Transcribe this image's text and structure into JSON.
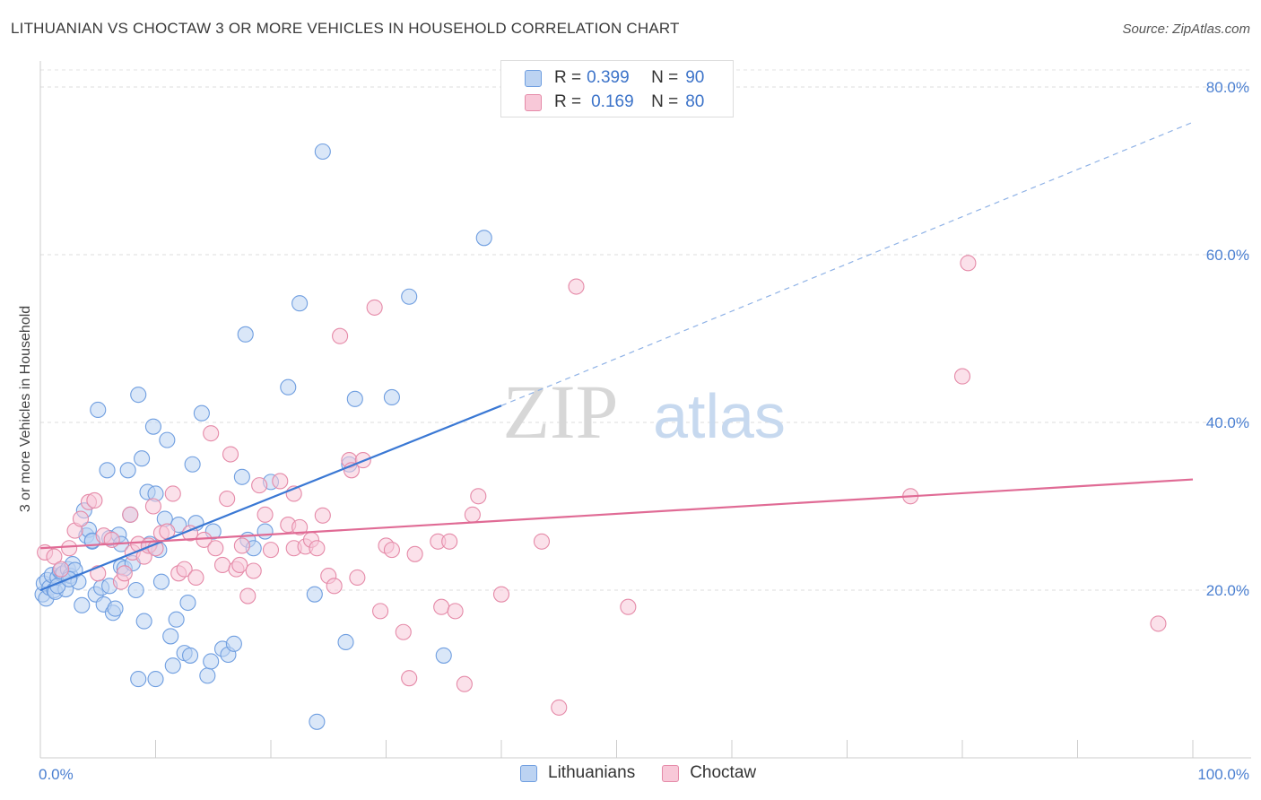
{
  "title": "LITHUANIAN VS CHOCTAW 3 OR MORE VEHICLES IN HOUSEHOLD CORRELATION CHART",
  "source": "Source: ZipAtlas.com",
  "watermark": {
    "zip": "ZIP",
    "atlas": "atlas"
  },
  "legend": {
    "rows": [
      {
        "r_label": "R =",
        "r_value": "0.399",
        "n_label": "N =",
        "n_value": "90",
        "fill": "#bcd3f2",
        "stroke": "#6f9ee0"
      },
      {
        "r_label": "R =",
        "r_value": "0.169",
        "n_label": "N =",
        "n_value": "80",
        "fill": "#f8c8d8",
        "stroke": "#e58aa8"
      }
    ]
  },
  "bottom_legend": [
    {
      "label": "Lithuanians",
      "fill": "#bcd3f2",
      "stroke": "#6f9ee0"
    },
    {
      "label": "Choctaw",
      "fill": "#f8c8d8",
      "stroke": "#e58aa8"
    }
  ],
  "chart_data": {
    "type": "scatter",
    "xlabel": "",
    "ylabel": "3 or more Vehicles in Household",
    "xlim": [
      0,
      100
    ],
    "ylim": [
      0,
      80
    ],
    "x_tick_labels": [
      "0.0%",
      "100.0%"
    ],
    "y_tick_labels": [
      "20.0%",
      "40.0%",
      "60.0%",
      "80.0%"
    ],
    "y_ticks": [
      20,
      40,
      60,
      80
    ],
    "grid": true,
    "legend_position": "top-center",
    "series": [
      {
        "name": "Lithuanians",
        "color": "#6f9ee0",
        "fill": "#bcd3f2",
        "trend": {
          "x0": 0,
          "y0": 20.0,
          "x1": 40,
          "y1": 42.0,
          "dash_to_x": 100,
          "dash_to_y": 75.8
        },
        "points": [
          [
            0.2,
            19.5
          ],
          [
            0.3,
            20.8
          ],
          [
            0.5,
            19.0
          ],
          [
            0.6,
            21.2
          ],
          [
            0.8,
            20.3
          ],
          [
            1.0,
            21.8
          ],
          [
            1.2,
            20.0
          ],
          [
            1.3,
            19.8
          ],
          [
            1.5,
            21.5
          ],
          [
            1.7,
            22.3
          ],
          [
            1.9,
            21.9
          ],
          [
            2.0,
            22.0
          ],
          [
            2.2,
            20.1
          ],
          [
            2.4,
            22.5
          ],
          [
            2.6,
            21.7
          ],
          [
            2.8,
            23.1
          ],
          [
            3.0,
            22.4
          ],
          [
            3.3,
            21.0
          ],
          [
            3.6,
            18.2
          ],
          [
            3.8,
            29.5
          ],
          [
            4.0,
            26.5
          ],
          [
            4.2,
            27.2
          ],
          [
            4.5,
            25.8
          ],
          [
            4.8,
            19.5
          ],
          [
            5.0,
            41.5
          ],
          [
            5.3,
            20.3
          ],
          [
            5.5,
            18.3
          ],
          [
            5.8,
            34.3
          ],
          [
            6.0,
            26.2
          ],
          [
            6.3,
            17.3
          ],
          [
            6.5,
            17.8
          ],
          [
            6.8,
            26.6
          ],
          [
            7.0,
            22.8
          ],
          [
            7.3,
            22.6
          ],
          [
            7.6,
            34.3
          ],
          [
            7.8,
            29.0
          ],
          [
            8.0,
            23.2
          ],
          [
            8.3,
            20.0
          ],
          [
            8.5,
            43.3
          ],
          [
            8.8,
            35.7
          ],
          [
            9.0,
            16.3
          ],
          [
            9.3,
            31.7
          ],
          [
            9.5,
            25.5
          ],
          [
            9.8,
            39.5
          ],
          [
            10.0,
            31.5
          ],
          [
            10.3,
            24.8
          ],
          [
            10.5,
            21.0
          ],
          [
            10.8,
            28.5
          ],
          [
            11.0,
            37.9
          ],
          [
            11.3,
            14.5
          ],
          [
            11.5,
            11.0
          ],
          [
            11.8,
            16.5
          ],
          [
            12.0,
            27.8
          ],
          [
            12.5,
            12.5
          ],
          [
            12.8,
            18.5
          ],
          [
            13.0,
            12.2
          ],
          [
            13.2,
            35.0
          ],
          [
            13.5,
            28.0
          ],
          [
            14.0,
            41.1
          ],
          [
            14.5,
            9.8
          ],
          [
            14.8,
            11.5
          ],
          [
            15.0,
            27.0
          ],
          [
            15.8,
            13.0
          ],
          [
            16.3,
            12.3
          ],
          [
            16.8,
            13.6
          ],
          [
            17.5,
            33.5
          ],
          [
            17.8,
            50.5
          ],
          [
            18.0,
            26.0
          ],
          [
            18.5,
            25.0
          ],
          [
            19.5,
            27.0
          ],
          [
            20.0,
            32.9
          ],
          [
            21.5,
            44.2
          ],
          [
            22.5,
            54.2
          ],
          [
            23.8,
            19.5
          ],
          [
            24.5,
            72.3
          ],
          [
            26.5,
            13.8
          ],
          [
            26.8,
            35.0
          ],
          [
            27.3,
            42.8
          ],
          [
            30.5,
            43.0
          ],
          [
            32.0,
            55.0
          ],
          [
            35.0,
            12.2
          ],
          [
            38.5,
            62.0
          ],
          [
            8.5,
            9.4
          ],
          [
            10.0,
            9.4
          ],
          [
            24.0,
            4.3
          ],
          [
            1.5,
            20.5
          ],
          [
            2.5,
            21.3
          ],
          [
            4.5,
            25.9
          ],
          [
            6.0,
            20.5
          ],
          [
            7.0,
            25.5
          ]
        ]
      },
      {
        "name": "Choctaw",
        "color": "#e58aa8",
        "fill": "#f8c8d8",
        "trend": {
          "x0": 0,
          "y0": 25.0,
          "x1": 100,
          "y1": 33.2
        },
        "points": [
          [
            0.4,
            24.5
          ],
          [
            1.2,
            24.0
          ],
          [
            1.8,
            22.5
          ],
          [
            2.5,
            25.0
          ],
          [
            3.0,
            27.1
          ],
          [
            3.5,
            28.5
          ],
          [
            4.2,
            30.5
          ],
          [
            4.7,
            30.7
          ],
          [
            5.0,
            22.0
          ],
          [
            5.5,
            26.5
          ],
          [
            6.2,
            26.0
          ],
          [
            7.0,
            21.0
          ],
          [
            7.3,
            22.0
          ],
          [
            7.8,
            29.0
          ],
          [
            8.0,
            24.5
          ],
          [
            8.5,
            25.5
          ],
          [
            9.0,
            24.0
          ],
          [
            9.4,
            25.3
          ],
          [
            9.8,
            30.0
          ],
          [
            10.0,
            25.0
          ],
          [
            10.5,
            26.8
          ],
          [
            11.0,
            27.0
          ],
          [
            11.5,
            31.5
          ],
          [
            12.0,
            22.0
          ],
          [
            12.5,
            22.5
          ],
          [
            13.0,
            26.8
          ],
          [
            13.5,
            21.5
          ],
          [
            14.2,
            26.0
          ],
          [
            14.8,
            38.7
          ],
          [
            15.2,
            25.0
          ],
          [
            15.8,
            23.0
          ],
          [
            16.2,
            30.9
          ],
          [
            16.5,
            36.2
          ],
          [
            17.0,
            22.5
          ],
          [
            17.3,
            23.0
          ],
          [
            17.5,
            25.3
          ],
          [
            18.0,
            19.3
          ],
          [
            18.5,
            22.3
          ],
          [
            19.0,
            32.5
          ],
          [
            19.5,
            29.0
          ],
          [
            20.0,
            24.8
          ],
          [
            20.8,
            33.0
          ],
          [
            21.5,
            27.8
          ],
          [
            22.0,
            25.0
          ],
          [
            22.5,
            27.5
          ],
          [
            23.0,
            25.2
          ],
          [
            23.5,
            26.0
          ],
          [
            24.0,
            25.0
          ],
          [
            24.5,
            28.9
          ],
          [
            25.0,
            21.7
          ],
          [
            25.5,
            20.5
          ],
          [
            26.0,
            50.3
          ],
          [
            26.8,
            35.5
          ],
          [
            27.0,
            34.3
          ],
          [
            27.5,
            21.5
          ],
          [
            28.0,
            35.5
          ],
          [
            29.0,
            53.7
          ],
          [
            29.5,
            17.5
          ],
          [
            30.0,
            25.3
          ],
          [
            30.5,
            24.8
          ],
          [
            32.0,
            9.5
          ],
          [
            32.5,
            24.3
          ],
          [
            34.5,
            25.8
          ],
          [
            34.8,
            18.0
          ],
          [
            35.5,
            25.8
          ],
          [
            36.0,
            17.5
          ],
          [
            36.8,
            8.8
          ],
          [
            38.0,
            31.2
          ],
          [
            40.0,
            19.5
          ],
          [
            43.5,
            25.8
          ],
          [
            45.0,
            6.0
          ],
          [
            46.5,
            56.2
          ],
          [
            51.0,
            18.0
          ],
          [
            75.5,
            31.2
          ],
          [
            80.0,
            45.5
          ],
          [
            80.5,
            59.0
          ],
          [
            97.0,
            16.0
          ],
          [
            31.5,
            15.0
          ],
          [
            22.0,
            31.5
          ],
          [
            37.5,
            29.0
          ]
        ]
      }
    ]
  }
}
